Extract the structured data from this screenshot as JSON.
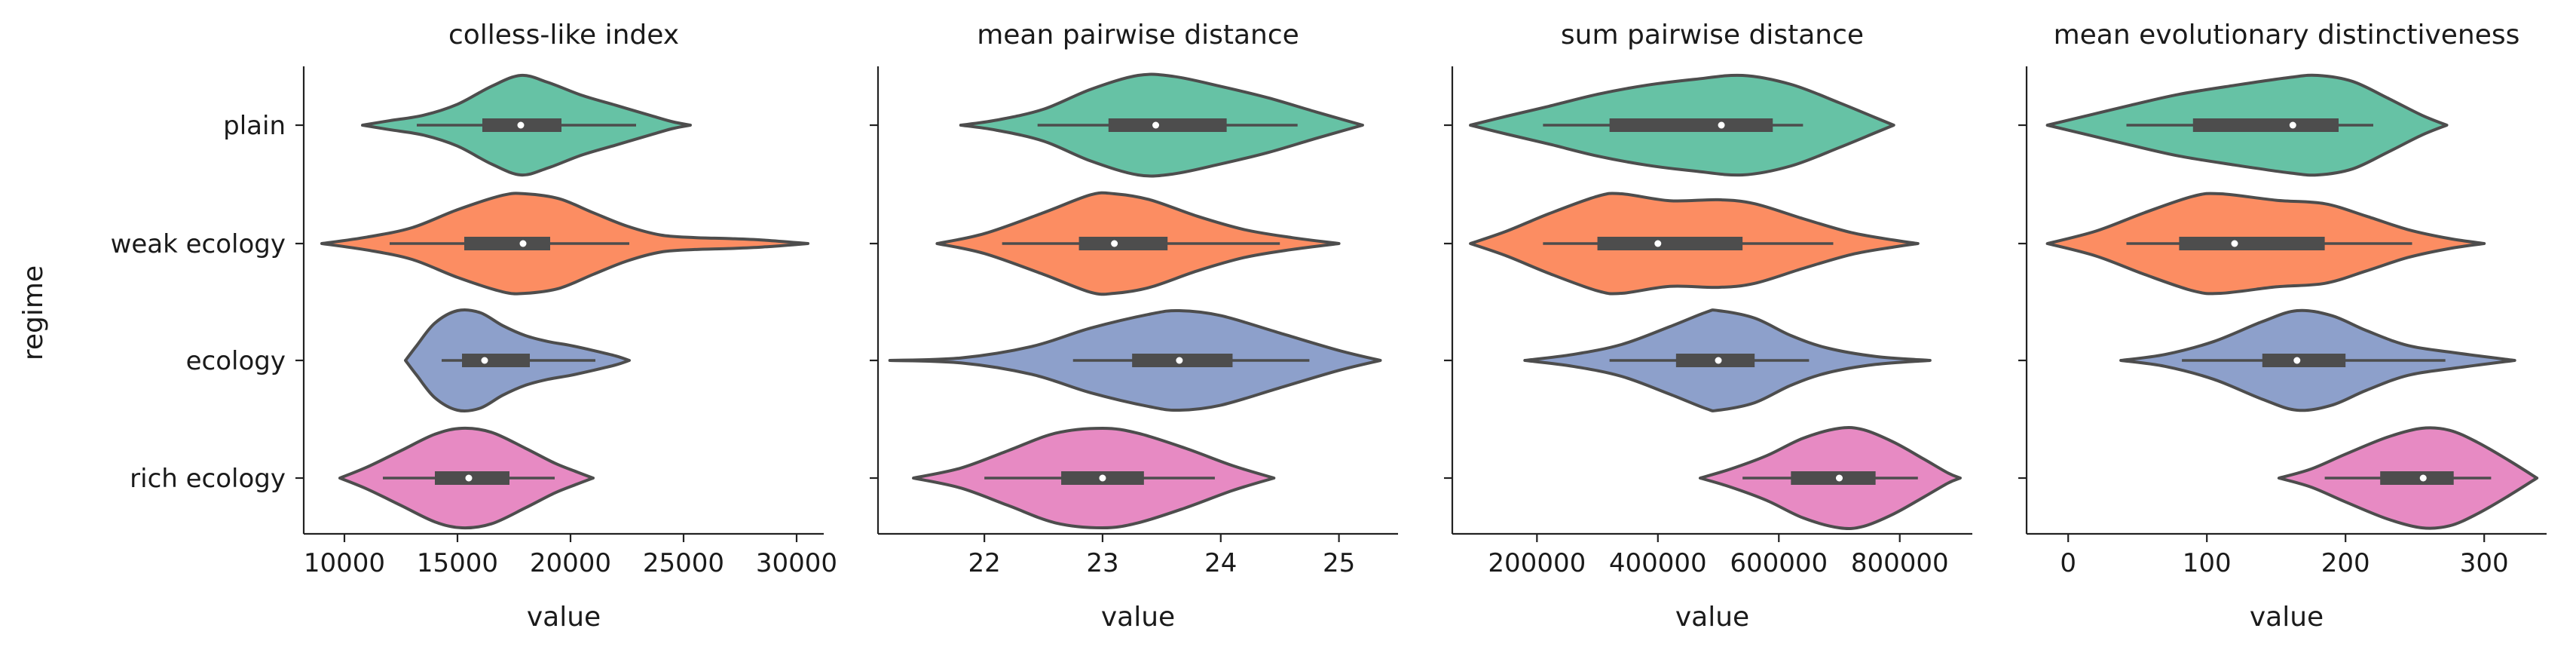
{
  "figure": {
    "ylabel": "regime",
    "categories": [
      "plain",
      "weak ecology",
      "ecology",
      "rich ecology"
    ],
    "colors": [
      "#66c2a5",
      "#fc8d62",
      "#8da0cb",
      "#e78ac3"
    ],
    "edge_color": "#4d4d4d",
    "box_color": "#4d4d4d",
    "median_color": "#ffffff"
  },
  "chart_data": [
    {
      "type": "violin",
      "title": "colless-like index",
      "xlabel": "value",
      "xlim": [
        8200,
        31200
      ],
      "xticks": [
        10000,
        15000,
        20000,
        25000,
        30000
      ],
      "xtick_labels": [
        "10000",
        "15000",
        "20000",
        "25000",
        "30000"
      ],
      "series": [
        {
          "category": "plain",
          "min": 10800,
          "max": 25300,
          "whisker_low": 13200,
          "whisker_high": 22900,
          "q1": 16100,
          "q3": 19600,
          "median": 17800,
          "density": [
            [
              10800,
              0.0
            ],
            [
              12000,
              0.09
            ],
            [
              13500,
              0.2
            ],
            [
              15000,
              0.42
            ],
            [
              16500,
              0.78
            ],
            [
              17800,
              1.0
            ],
            [
              19000,
              0.86
            ],
            [
              20500,
              0.6
            ],
            [
              22000,
              0.4
            ],
            [
              23500,
              0.2
            ],
            [
              24500,
              0.07
            ],
            [
              25300,
              0.0
            ]
          ]
        },
        {
          "category": "weak ecology",
          "min": 9000,
          "max": 30500,
          "whisker_low": 12000,
          "whisker_high": 22600,
          "q1": 15300,
          "q3": 19100,
          "median": 17900,
          "density": [
            [
              9000,
              0.0
            ],
            [
              11000,
              0.13
            ],
            [
              13000,
              0.32
            ],
            [
              15000,
              0.68
            ],
            [
              17000,
              0.97
            ],
            [
              18000,
              1.0
            ],
            [
              19500,
              0.9
            ],
            [
              21000,
              0.62
            ],
            [
              22500,
              0.35
            ],
            [
              24000,
              0.17
            ],
            [
              25500,
              0.12
            ],
            [
              27000,
              0.1
            ],
            [
              28500,
              0.07
            ],
            [
              30500,
              0.0
            ]
          ]
        },
        {
          "category": "ecology",
          "min": 12700,
          "max": 22600,
          "whisker_low": 14300,
          "whisker_high": 21100,
          "q1": 15200,
          "q3": 18200,
          "median": 16200,
          "density": [
            [
              12700,
              0.0
            ],
            [
              13200,
              0.3
            ],
            [
              14000,
              0.75
            ],
            [
              15000,
              1.0
            ],
            [
              16000,
              0.96
            ],
            [
              17000,
              0.7
            ],
            [
              18000,
              0.5
            ],
            [
              19000,
              0.38
            ],
            [
              20000,
              0.3
            ],
            [
              21000,
              0.2
            ],
            [
              22000,
              0.09
            ],
            [
              22600,
              0.0
            ]
          ]
        },
        {
          "category": "rich ecology",
          "min": 9800,
          "max": 21000,
          "whisker_low": 11700,
          "whisker_high": 19300,
          "q1": 14000,
          "q3": 17300,
          "median": 15500,
          "density": [
            [
              9800,
              0.0
            ],
            [
              11000,
              0.22
            ],
            [
              12500,
              0.55
            ],
            [
              14000,
              0.88
            ],
            [
              15200,
              1.0
            ],
            [
              16500,
              0.92
            ],
            [
              18000,
              0.6
            ],
            [
              19300,
              0.3
            ],
            [
              20300,
              0.12
            ],
            [
              21000,
              0.0
            ]
          ]
        }
      ]
    },
    {
      "type": "violin",
      "title": "mean pairwise distance",
      "xlabel": "value",
      "xlim": [
        21.1,
        25.5
      ],
      "xticks": [
        22,
        23,
        24,
        25
      ],
      "xtick_labels": [
        "22",
        "23",
        "24",
        "25"
      ],
      "series": [
        {
          "category": "plain",
          "min": 21.8,
          "max": 25.2,
          "whisker_low": 22.45,
          "whisker_high": 24.65,
          "q1": 23.05,
          "q3": 24.05,
          "median": 23.45,
          "density": [
            [
              21.8,
              0.0
            ],
            [
              22.1,
              0.1
            ],
            [
              22.5,
              0.32
            ],
            [
              22.9,
              0.72
            ],
            [
              23.3,
              1.0
            ],
            [
              23.6,
              0.98
            ],
            [
              24.0,
              0.78
            ],
            [
              24.4,
              0.55
            ],
            [
              24.8,
              0.27
            ],
            [
              25.2,
              0.0
            ]
          ]
        },
        {
          "category": "weak ecology",
          "min": 21.6,
          "max": 25.0,
          "whisker_low": 22.15,
          "whisker_high": 24.5,
          "q1": 22.8,
          "q3": 23.55,
          "median": 23.1,
          "density": [
            [
              21.6,
              0.0
            ],
            [
              22.0,
              0.2
            ],
            [
              22.5,
              0.62
            ],
            [
              22.9,
              0.98
            ],
            [
              23.1,
              1.0
            ],
            [
              23.4,
              0.88
            ],
            [
              23.8,
              0.55
            ],
            [
              24.2,
              0.28
            ],
            [
              24.6,
              0.12
            ],
            [
              25.0,
              0.0
            ]
          ]
        },
        {
          "category": "ecology",
          "min": 21.2,
          "max": 25.35,
          "whisker_low": 22.75,
          "whisker_high": 24.75,
          "q1": 23.25,
          "q3": 24.1,
          "median": 23.65,
          "density": [
            [
              21.2,
              0.0
            ],
            [
              21.8,
              0.05
            ],
            [
              22.4,
              0.28
            ],
            [
              22.9,
              0.65
            ],
            [
              23.4,
              0.93
            ],
            [
              23.65,
              1.0
            ],
            [
              24.0,
              0.9
            ],
            [
              24.5,
              0.55
            ],
            [
              25.0,
              0.2
            ],
            [
              25.35,
              0.0
            ]
          ]
        },
        {
          "category": "rich ecology",
          "min": 21.4,
          "max": 24.45,
          "whisker_low": 22.0,
          "whisker_high": 23.95,
          "q1": 22.65,
          "q3": 23.35,
          "median": 23.0,
          "density": [
            [
              21.4,
              0.0
            ],
            [
              21.8,
              0.2
            ],
            [
              22.2,
              0.55
            ],
            [
              22.6,
              0.9
            ],
            [
              23.0,
              1.0
            ],
            [
              23.3,
              0.9
            ],
            [
              23.7,
              0.6
            ],
            [
              24.1,
              0.25
            ],
            [
              24.45,
              0.0
            ]
          ]
        }
      ]
    },
    {
      "type": "violin",
      "title": "sum pairwise distance",
      "xlabel": "value",
      "xlim": [
        60000,
        920000
      ],
      "xticks": [
        200000,
        400000,
        600000,
        800000
      ],
      "xtick_labels": [
        "200000",
        "400000",
        "600000",
        "800000"
      ],
      "series": [
        {
          "category": "plain",
          "min": 90000,
          "max": 790000,
          "whisker_low": 210000,
          "whisker_high": 640000,
          "q1": 320000,
          "q3": 590000,
          "median": 505000,
          "density": [
            [
              90000,
              0.0
            ],
            [
              150000,
              0.18
            ],
            [
              220000,
              0.38
            ],
            [
              300000,
              0.62
            ],
            [
              380000,
              0.8
            ],
            [
              460000,
              0.92
            ],
            [
              540000,
              1.0
            ],
            [
              620000,
              0.82
            ],
            [
              700000,
              0.45
            ],
            [
              760000,
              0.15
            ],
            [
              790000,
              0.0
            ]
          ]
        },
        {
          "category": "weak ecology",
          "min": 90000,
          "max": 830000,
          "whisker_low": 210000,
          "whisker_high": 690000,
          "q1": 300000,
          "q3": 540000,
          "median": 400000,
          "density": [
            [
              90000,
              0.0
            ],
            [
              150000,
              0.25
            ],
            [
              220000,
              0.6
            ],
            [
              300000,
              0.95
            ],
            [
              340000,
              1.0
            ],
            [
              420000,
              0.86
            ],
            [
              500000,
              0.88
            ],
            [
              560000,
              0.8
            ],
            [
              640000,
              0.5
            ],
            [
              720000,
              0.22
            ],
            [
              790000,
              0.07
            ],
            [
              830000,
              0.0
            ]
          ]
        },
        {
          "category": "ecology",
          "min": 180000,
          "max": 850000,
          "whisker_low": 320000,
          "whisker_high": 650000,
          "q1": 430000,
          "q3": 560000,
          "median": 500000,
          "density": [
            [
              180000,
              0.0
            ],
            [
              260000,
              0.12
            ],
            [
              340000,
              0.32
            ],
            [
              420000,
              0.68
            ],
            [
              480000,
              0.97
            ],
            [
              500000,
              1.0
            ],
            [
              560000,
              0.85
            ],
            [
              620000,
              0.5
            ],
            [
              680000,
              0.25
            ],
            [
              760000,
              0.08
            ],
            [
              850000,
              0.0
            ]
          ]
        },
        {
          "category": "rich ecology",
          "min": 470000,
          "max": 900000,
          "whisker_low": 540000,
          "whisker_high": 830000,
          "q1": 620000,
          "q3": 760000,
          "median": 700000,
          "density": [
            [
              470000,
              0.0
            ],
            [
              520000,
              0.18
            ],
            [
              580000,
              0.45
            ],
            [
              640000,
              0.8
            ],
            [
              700000,
              1.0
            ],
            [
              740000,
              0.97
            ],
            [
              790000,
              0.72
            ],
            [
              840000,
              0.38
            ],
            [
              880000,
              0.1
            ],
            [
              900000,
              0.0
            ]
          ]
        }
      ]
    },
    {
      "type": "violin",
      "title": "mean evolutionary distinctiveness",
      "xlabel": "value",
      "xlim": [
        -30,
        345
      ],
      "xticks": [
        0,
        100,
        200,
        300
      ],
      "xtick_labels": [
        "0",
        "100",
        "200",
        "300"
      ],
      "series": [
        {
          "category": "plain",
          "min": -15,
          "max": 273,
          "whisker_low": 42,
          "whisker_high": 220,
          "q1": 90,
          "q3": 195,
          "median": 162,
          "density": [
            [
              -15,
              0.0
            ],
            [
              15,
              0.2
            ],
            [
              45,
              0.4
            ],
            [
              80,
              0.62
            ],
            [
              120,
              0.8
            ],
            [
              160,
              0.96
            ],
            [
              180,
              1.0
            ],
            [
              205,
              0.88
            ],
            [
              230,
              0.55
            ],
            [
              255,
              0.2
            ],
            [
              273,
              0.0
            ]
          ]
        },
        {
          "category": "weak ecology",
          "min": -15,
          "max": 300,
          "whisker_low": 42,
          "whisker_high": 248,
          "q1": 80,
          "q3": 185,
          "median": 120,
          "density": [
            [
              -15,
              0.0
            ],
            [
              20,
              0.25
            ],
            [
              55,
              0.62
            ],
            [
              90,
              0.95
            ],
            [
              110,
              1.0
            ],
            [
              150,
              0.87
            ],
            [
              185,
              0.8
            ],
            [
              215,
              0.55
            ],
            [
              245,
              0.28
            ],
            [
              275,
              0.1
            ],
            [
              300,
              0.0
            ]
          ]
        },
        {
          "category": "ecology",
          "min": 38,
          "max": 322,
          "whisker_low": 82,
          "whisker_high": 272,
          "q1": 140,
          "q3": 200,
          "median": 165,
          "density": [
            [
              38,
              0.0
            ],
            [
              70,
              0.12
            ],
            [
              105,
              0.38
            ],
            [
              140,
              0.78
            ],
            [
              165,
              1.0
            ],
            [
              190,
              0.9
            ],
            [
              215,
              0.6
            ],
            [
              245,
              0.3
            ],
            [
              280,
              0.15
            ],
            [
              322,
              0.0
            ]
          ]
        },
        {
          "category": "rich ecology",
          "min": 152,
          "max": 338,
          "whisker_low": 185,
          "whisker_high": 305,
          "q1": 225,
          "q3": 278,
          "median": 256,
          "density": [
            [
              152,
              0.0
            ],
            [
              175,
              0.18
            ],
            [
              200,
              0.48
            ],
            [
              230,
              0.82
            ],
            [
              255,
              1.0
            ],
            [
              275,
              0.96
            ],
            [
              295,
              0.72
            ],
            [
              318,
              0.35
            ],
            [
              338,
              0.0
            ]
          ]
        }
      ]
    }
  ]
}
